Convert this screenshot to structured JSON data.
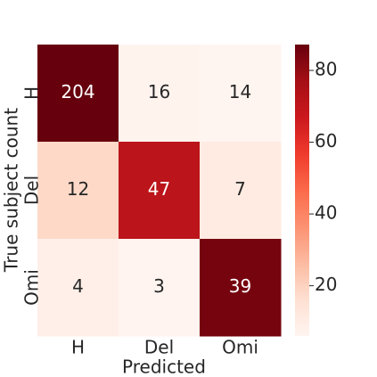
{
  "chart_data": {
    "type": "heatmap",
    "x_label": "Predicted",
    "y_label": "True subject count",
    "x_categories": [
      "H",
      "Del",
      "Omi"
    ],
    "y_categories": [
      "H",
      "Del",
      "Omi"
    ],
    "values": [
      [
        204,
        16,
        14
      ],
      [
        12,
        47,
        7
      ],
      [
        4,
        3,
        39
      ]
    ],
    "color_values": [
      [
        87.2,
        6.8,
        6.0
      ],
      [
        18.2,
        71.2,
        10.6
      ],
      [
        8.7,
        6.5,
        84.8
      ]
    ],
    "colormap": [
      "#fff5f0",
      "#fee0d2",
      "#fcbba1",
      "#fc9272",
      "#fb6a4a",
      "#ef3b2c",
      "#cb181d",
      "#a50f15",
      "#67000d"
    ],
    "zlim": [
      6.0,
      87.2
    ],
    "zticks": [
      20,
      40,
      60,
      80
    ]
  }
}
